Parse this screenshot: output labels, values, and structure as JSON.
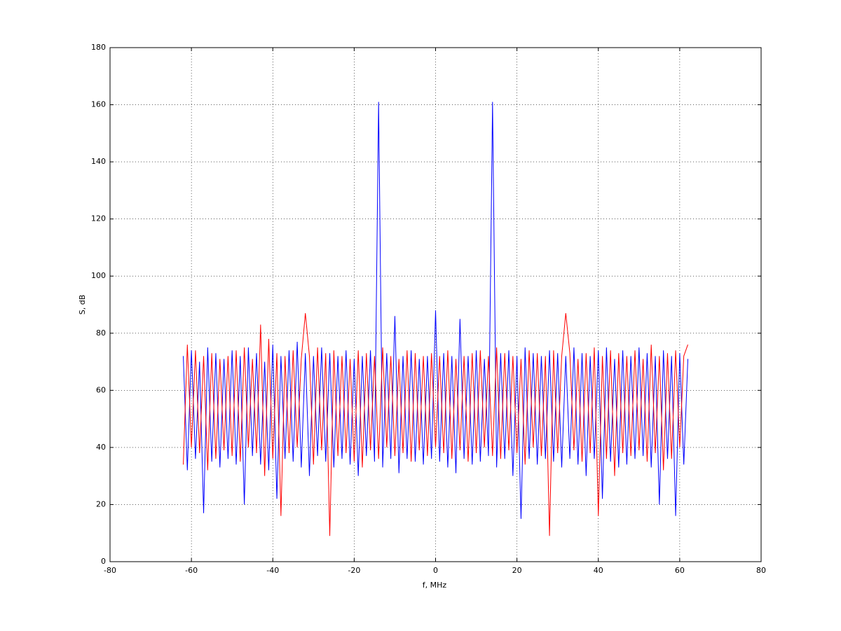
{
  "chart_data": {
    "type": "line",
    "xlabel": "f, MHz",
    "ylabel": "S, dB",
    "x": [
      -62,
      -61,
      -60,
      -59,
      -58,
      -57,
      -56,
      -55,
      -54,
      -53,
      -52,
      -51,
      -50,
      -49,
      -48,
      -47,
      -46,
      -45,
      -44,
      -43,
      -42,
      -41,
      -40,
      -39,
      -38,
      -37,
      -36,
      -35,
      -34,
      -33,
      -32,
      -31,
      -30,
      -29,
      -28,
      -27,
      -26,
      -25,
      -24,
      -23,
      -22,
      -21,
      -20,
      -19,
      -18,
      -17,
      -16,
      -15,
      -14,
      -13,
      -12,
      -11,
      -10,
      -9,
      -8,
      -7,
      -6,
      -5,
      -4,
      -3,
      -2,
      -1,
      0,
      1,
      2,
      3,
      4,
      5,
      6,
      7,
      8,
      9,
      10,
      11,
      12,
      13,
      14,
      15,
      16,
      17,
      18,
      19,
      20,
      21,
      22,
      23,
      24,
      25,
      26,
      27,
      28,
      29,
      30,
      31,
      32,
      33,
      34,
      35,
      36,
      37,
      38,
      39,
      40,
      41,
      42,
      43,
      44,
      45,
      46,
      47,
      48,
      49,
      50,
      51,
      52,
      53,
      54,
      55,
      56,
      57,
      58,
      59,
      60,
      61,
      62
    ],
    "series": [
      {
        "color": "#0000ff",
        "values": [
          72,
          32,
          74,
          36,
          70,
          17,
          75,
          35,
          73,
          33,
          71,
          36,
          74,
          34,
          72,
          20,
          75,
          37,
          73,
          34,
          70,
          32,
          76,
          22,
          72,
          36,
          74,
          35,
          77,
          33,
          73,
          30,
          72,
          37,
          75,
          35,
          73,
          33,
          72,
          36,
          74,
          34,
          71,
          30,
          72,
          37,
          74,
          35,
          161,
          33,
          73,
          36,
          86,
          31,
          72,
          36,
          74,
          35,
          71,
          34,
          72,
          36,
          88,
          35,
          73,
          33,
          72,
          31,
          85,
          36,
          72,
          34,
          74,
          35,
          71,
          37,
          161,
          33,
          73,
          36,
          74,
          30,
          72,
          15,
          75,
          36,
          73,
          34,
          72,
          36,
          74,
          35,
          73,
          33,
          72,
          36,
          75,
          34,
          73,
          30,
          72,
          36,
          74,
          22,
          75,
          35,
          71,
          33,
          74,
          34,
          72,
          36,
          75,
          37,
          73,
          33,
          72,
          20,
          74,
          36,
          72,
          16,
          73,
          34,
          71
        ]
      },
      {
        "color": "#ff0000",
        "values": [
          34,
          76,
          40,
          74,
          38,
          72,
          32,
          73,
          36,
          71,
          39,
          72,
          37,
          74,
          35,
          75,
          40,
          71,
          38,
          83,
          30,
          78,
          36,
          73,
          16,
          72,
          38,
          74,
          40,
          71,
          87,
          72,
          34,
          75,
          39,
          73,
          9,
          74,
          37,
          72,
          38,
          71,
          35,
          74,
          33,
          73,
          39,
          72,
          36,
          75,
          40,
          72,
          37,
          71,
          38,
          74,
          35,
          73,
          39,
          72,
          37,
          73,
          40,
          72,
          38,
          74,
          36,
          71,
          39,
          72,
          35,
          73,
          38,
          74,
          40,
          72,
          37,
          75,
          36,
          73,
          39,
          72,
          38,
          71,
          34,
          74,
          40,
          73,
          37,
          72,
          9,
          74,
          38,
          72,
          87,
          73,
          39,
          71,
          35,
          73,
          38,
          75,
          16,
          72,
          36,
          74,
          30,
          73,
          38,
          72,
          37,
          74,
          39,
          71,
          35,
          76,
          38,
          72,
          32,
          73,
          36,
          74,
          40,
          72,
          76
        ]
      }
    ],
    "xlim": [
      -80,
      80
    ],
    "xticks": [
      -80,
      -60,
      -40,
      -20,
      0,
      20,
      40,
      60,
      80
    ],
    "ylim": [
      0,
      180
    ],
    "yticks": [
      0,
      20,
      40,
      60,
      80,
      100,
      120,
      140,
      160,
      180
    ],
    "grid": true
  }
}
